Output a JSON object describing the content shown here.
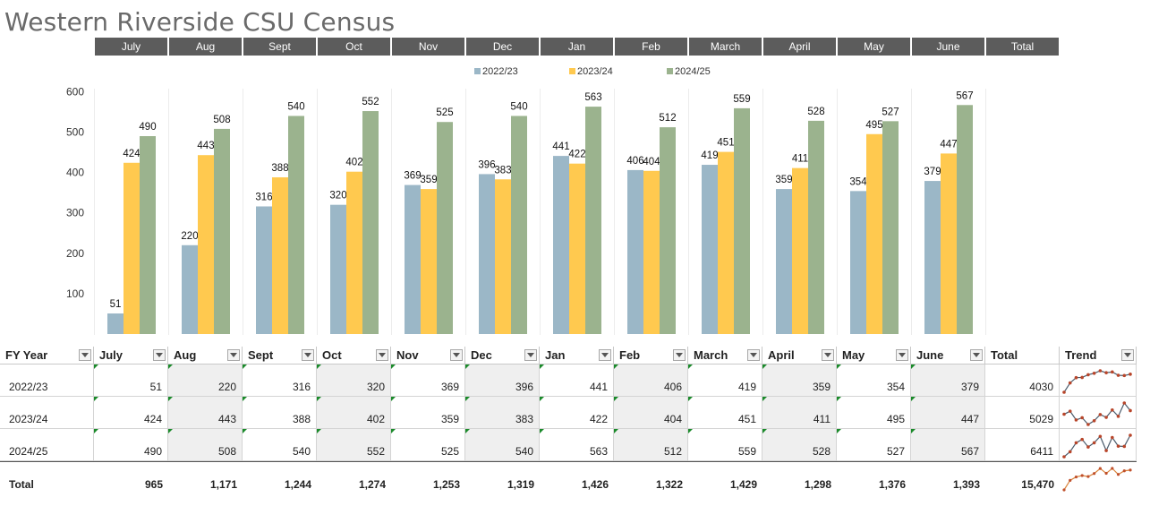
{
  "title": "Western Riverside CSU Census",
  "months": [
    "July",
    "Aug",
    "Sept",
    "Oct",
    "Nov",
    "Dec",
    "Jan",
    "Feb",
    "March",
    "April",
    "May",
    "June",
    "Total"
  ],
  "colors": {
    "s2223": "#9bb7c7",
    "s2324": "#ffc94f",
    "s2425": "#9bb38e",
    "header_band": "#5c5c5c"
  },
  "chart_data": {
    "type": "bar",
    "title": "",
    "categories": [
      "July",
      "Aug",
      "Sept",
      "Oct",
      "Nov",
      "Dec",
      "Jan",
      "Feb",
      "March",
      "April",
      "May",
      "June"
    ],
    "series": [
      {
        "name": "2022/23",
        "values": [
          51,
          220,
          316,
          320,
          369,
          396,
          441,
          406,
          419,
          359,
          354,
          379
        ]
      },
      {
        "name": "2023/24",
        "values": [
          424,
          443,
          388,
          402,
          359,
          383,
          422,
          404,
          451,
          411,
          495,
          447
        ]
      },
      {
        "name": "2024/25",
        "values": [
          490,
          508,
          540,
          552,
          525,
          540,
          563,
          512,
          559,
          528,
          527,
          567
        ]
      }
    ],
    "ylim": [
      0,
      600
    ],
    "yticks": [
      100,
      200,
      300,
      400,
      500,
      600
    ],
    "legend_position": "top"
  },
  "table": {
    "headers": [
      "FY Year",
      "July",
      "Aug",
      "Sept",
      "Oct",
      "Nov",
      "Dec",
      "Jan",
      "Feb",
      "March",
      "April",
      "May",
      "June",
      "Total",
      "Trend"
    ],
    "rows": [
      {
        "year": "2022/23",
        "values": [
          "51",
          "220",
          "316",
          "320",
          "369",
          "396",
          "441",
          "406",
          "419",
          "359",
          "354",
          "379"
        ],
        "total": "4030"
      },
      {
        "year": "2023/24",
        "values": [
          "424",
          "443",
          "388",
          "402",
          "359",
          "383",
          "422",
          "404",
          "451",
          "411",
          "495",
          "447"
        ],
        "total": "5029"
      },
      {
        "year": "2024/25",
        "values": [
          "490",
          "508",
          "540",
          "552",
          "525",
          "540",
          "563",
          "512",
          "559",
          "528",
          "527",
          "567"
        ],
        "total": "6411"
      }
    ],
    "totals_row": {
      "label": "Total",
      "values": [
        "965",
        "1,171",
        "1,244",
        "1,274",
        "1,253",
        "1,319",
        "1,426",
        "1,322",
        "1,429",
        "1,298",
        "1,376",
        "1,393"
      ],
      "grand_total": "15,470"
    }
  }
}
